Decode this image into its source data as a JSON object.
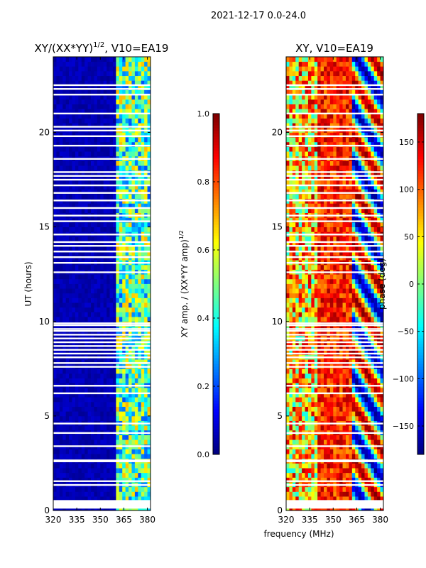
{
  "suptitle": "2021-12-17 0.0-24.0",
  "xlabel": "frequency (MHz)",
  "colors": {
    "heatmap_low": "#00008f",
    "heatmap_high": "#800000",
    "gap": "#ffffff"
  },
  "chart_data": [
    {
      "type": "heatmap",
      "title_main": "XY/(XX*YY)",
      "title_sup": "1/2",
      "title_tail": ", V10=EA19",
      "ylabel": "UT (hours)",
      "xlim": [
        320,
        382
      ],
      "ylim": [
        0,
        24
      ],
      "xticks": [
        320,
        335,
        350,
        365,
        380
      ],
      "yticks": [
        0,
        5,
        10,
        15,
        20
      ],
      "description_values": "normalized XY amplitude; near 0 below ~360 MHz, 0.2-0.7 between 360 and 382 MHz",
      "low_band_value": 0.05,
      "high_band_range": [
        0.2,
        0.7
      ],
      "band_edge_mhz": 360,
      "flagged_rows_hours": [
        0.2,
        0.4,
        1.35,
        1.55,
        2.6,
        2.65,
        3.4,
        4.1,
        4.6,
        6.2,
        6.6,
        7.6,
        7.8,
        8.1,
        8.3,
        8.5,
        8.7,
        8.9,
        9.1,
        9.3,
        9.5,
        9.6,
        9.8,
        9.9,
        12.6,
        13.1,
        13.4,
        13.7,
        14.0,
        14.2,
        14.6,
        15.3,
        15.6,
        16.0,
        16.4,
        16.8,
        17.2,
        17.5,
        17.7,
        17.9,
        18.6,
        19.3,
        19.8,
        20.1,
        20.3,
        21.0,
        22.0,
        22.3,
        22.5
      ]
    },
    {
      "type": "colorbar",
      "label_main": "XY amp. / (XX*YY amp)",
      "label_sup": "1/2",
      "lim": [
        0.0,
        1.0
      ],
      "ticks": [
        "0.0",
        "0.2",
        "0.4",
        "0.6",
        "0.8",
        "1.0"
      ]
    },
    {
      "type": "heatmap",
      "title": "XY, V10=EA19",
      "xlim": [
        320,
        382
      ],
      "ylim": [
        0,
        24
      ],
      "xticks": [
        320,
        335,
        350,
        365,
        380
      ],
      "yticks": [
        0,
        5,
        10,
        15,
        20
      ],
      "description_values": "XY phase in degrees, -180 to 180; mostly 50 to 170 with wrapping stripes",
      "phase_range": [
        -180,
        180
      ],
      "flagged_rows_hours": [
        0.2,
        0.4,
        1.35,
        1.55,
        2.6,
        2.65,
        3.4,
        4.1,
        4.6,
        6.2,
        6.6,
        7.6,
        7.8,
        8.1,
        8.3,
        8.5,
        8.7,
        8.9,
        9.1,
        9.3,
        9.5,
        9.6,
        9.8,
        9.9,
        12.6,
        13.1,
        13.4,
        13.7,
        14.0,
        14.2,
        14.6,
        15.3,
        15.6,
        16.0,
        16.4,
        16.8,
        17.2,
        17.5,
        17.7,
        17.9,
        18.6,
        19.3,
        19.8,
        20.1,
        20.3,
        21.0,
        22.0,
        22.3,
        22.5
      ]
    },
    {
      "type": "colorbar",
      "label": "phase (deg)",
      "lim": [
        -180,
        180
      ],
      "ticks": [
        "150",
        "100",
        "50",
        "0",
        "−50",
        "−100",
        "−150"
      ],
      "tick_values": [
        150,
        100,
        50,
        0,
        -50,
        -100,
        -150
      ]
    }
  ]
}
